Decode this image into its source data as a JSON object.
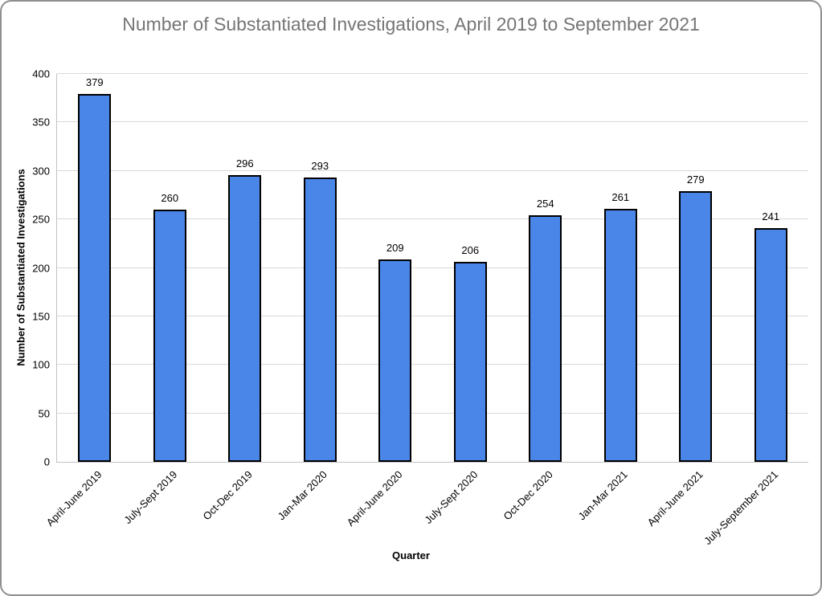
{
  "window": {
    "background": "#ffffff",
    "border_color": "#8f8f8f"
  },
  "chart_data": {
    "type": "bar",
    "title": "Number of Substantiated Investigations, April 2019 to September 2021",
    "xlabel": "Quarter",
    "ylabel": "Number of Substantiated Investigations",
    "categories": [
      "April-June 2019",
      "July-Sept 2019",
      "Oct-Dec 2019",
      "Jan-Mar 2020",
      "April-June 2020",
      "July-Sept 2020",
      "Oct-Dec 2020",
      "Jan-Mar 2021",
      "April-June 2021",
      "July-September 2021"
    ],
    "values": [
      379,
      260,
      296,
      293,
      209,
      206,
      254,
      261,
      279,
      241
    ],
    "ylim": [
      0,
      400
    ],
    "yticks": [
      0,
      50,
      100,
      150,
      200,
      250,
      300,
      350,
      400
    ],
    "grid": true,
    "legend": "none",
    "value_labels_shown": true,
    "colors": {
      "bar_fill": "#4a86e8",
      "bar_border": "#000000",
      "gridline": "#d9d9d9",
      "axis_line": "#c2c2c2",
      "title_text": "#757575",
      "label_text": "#000000"
    }
  }
}
